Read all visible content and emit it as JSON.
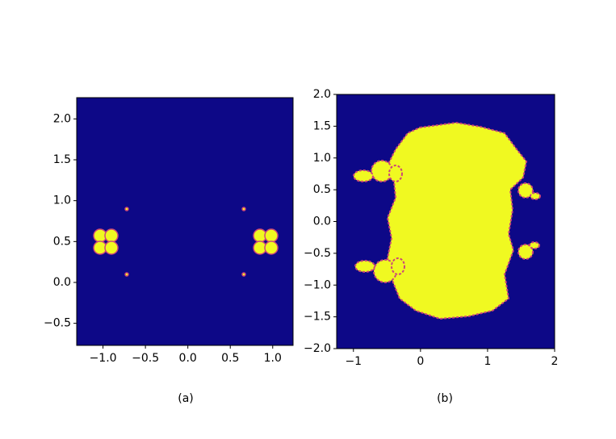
{
  "chart_data": [
    {
      "type": "image",
      "caption": "(a)",
      "background_color": "#0d0887",
      "fill_color": "#f0f921",
      "xlim": [
        -1.31,
        1.24
      ],
      "ylim": [
        -0.77,
        2.26
      ],
      "xticks": [
        {
          "value": -1.0,
          "label": "−1.0"
        },
        {
          "value": -0.5,
          "label": "−0.5"
        },
        {
          "value": 0.0,
          "label": "0.0"
        },
        {
          "value": 0.5,
          "label": "0.5"
        },
        {
          "value": 1.0,
          "label": "1.0"
        }
      ],
      "yticks": [
        {
          "value": -0.5,
          "label": "−0.5"
        },
        {
          "value": 0.0,
          "label": "0.0"
        },
        {
          "value": 0.5,
          "label": "0.5"
        },
        {
          "value": 1.0,
          "label": "1.0"
        },
        {
          "value": 1.5,
          "label": "1.5"
        },
        {
          "value": 2.0,
          "label": "2.0"
        }
      ]
    },
    {
      "type": "image",
      "caption": "(b)",
      "background_color": "#0d0887",
      "fill_color": "#f0f921",
      "xlim": [
        -1.25,
        2
      ],
      "ylim": [
        -2,
        2
      ],
      "xticks": [
        {
          "value": -1,
          "label": "−1"
        },
        0,
        1,
        2
      ],
      "yticks": [
        {
          "value": -2.0,
          "label": "−2.0"
        },
        {
          "value": -1.5,
          "label": "−1.5"
        },
        {
          "value": -1.0,
          "label": "−1.0"
        },
        {
          "value": -0.5,
          "label": "−0.5"
        },
        {
          "value": 0.0,
          "label": "0.0"
        },
        {
          "value": 0.5,
          "label": "0.5"
        },
        {
          "value": 1.0,
          "label": "1.0"
        },
        {
          "value": 1.5,
          "label": "1.5"
        },
        {
          "value": 2.0,
          "label": "2.0"
        }
      ]
    }
  ]
}
